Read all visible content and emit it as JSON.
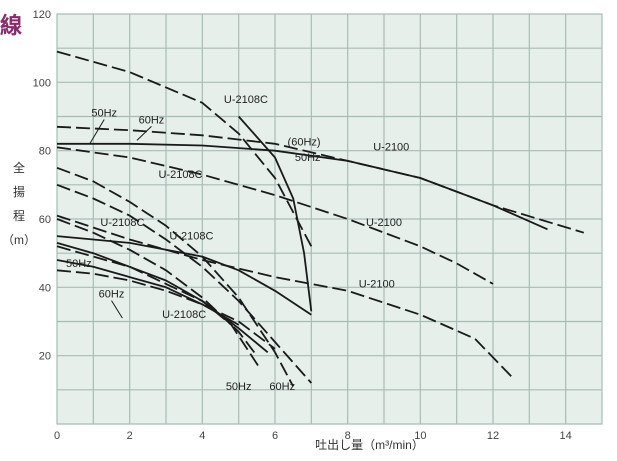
{
  "chart_data": {
    "type": "line",
    "title": "線",
    "xlabel": "吐出し量（m³/min）",
    "ylabel": [
      "全",
      "揚",
      "程",
      "（m）"
    ],
    "xlim": [
      0,
      15
    ],
    "ylim": [
      0,
      120
    ],
    "x_ticks": [
      {
        "v": 0,
        "label": "0"
      },
      {
        "v": 2,
        "label": "2"
      },
      {
        "v": 4,
        "label": "4"
      },
      {
        "v": 6,
        "label": "6"
      },
      {
        "v": 8,
        "label": "8"
      },
      {
        "v": 10,
        "label": "10"
      },
      {
        "v": 12,
        "label": "12"
      },
      {
        "v": 14,
        "label": "14"
      }
    ],
    "y_ticks": [
      {
        "v": 20,
        "label": "20"
      },
      {
        "v": 40,
        "label": "40"
      },
      {
        "v": 60,
        "label": "60"
      },
      {
        "v": 80,
        "label": "80"
      },
      {
        "v": 100,
        "label": "100"
      },
      {
        "v": 120,
        "label": "120"
      }
    ],
    "grid": true,
    "series": [
      {
        "name": "U-2108C",
        "dash": "dashed",
        "x": [
          0,
          2,
          4,
          5,
          6,
          7
        ],
        "y": [
          109,
          103,
          94,
          85,
          72,
          52
        ]
      },
      {
        "name": "50Hz",
        "dash": "solid",
        "x": [
          5,
          6,
          6.5,
          6.8,
          7
        ],
        "y": [
          90,
          78,
          66,
          50,
          33
        ]
      },
      {
        "name": "U-2100 (60Hz)",
        "dash": "dashed",
        "x": [
          0,
          2,
          4,
          6,
          8,
          10,
          12,
          14.5
        ],
        "y": [
          87,
          86,
          84.5,
          82,
          77,
          72,
          64,
          56
        ]
      },
      {
        "name": "50Hz",
        "dash": "solid",
        "x": [
          0,
          2,
          4,
          6,
          8,
          10,
          12,
          13.5
        ],
        "y": [
          82,
          82,
          81.5,
          80,
          77,
          72,
          64,
          57
        ]
      },
      {
        "name": "U-2100",
        "dash": "dashed",
        "x": [
          0,
          2,
          4,
          6,
          8,
          10,
          11,
          12
        ],
        "y": [
          81,
          78,
          73,
          67,
          60,
          52,
          47,
          41
        ]
      },
      {
        "name": "U-2108C",
        "dash": "dashed",
        "x": [
          0,
          1,
          2,
          3,
          4,
          5,
          6,
          6.5
        ],
        "y": [
          75,
          71,
          65,
          58,
          49,
          37,
          21,
          11
        ]
      },
      {
        "name": "U-2108C",
        "dash": "dashed",
        "x": [
          0,
          1,
          2,
          3,
          4,
          5,
          6,
          7
        ],
        "y": [
          70,
          66,
          61,
          54,
          46,
          36,
          24,
          12
        ]
      },
      {
        "name": "U-2100",
        "dash": "dashed",
        "x": [
          0,
          2,
          4,
          6,
          8,
          10,
          11.5,
          12.5
        ],
        "y": [
          61,
          54,
          48,
          43,
          39,
          32,
          25,
          14
        ]
      },
      {
        "name": "50Hz",
        "dash": "solid",
        "x": [
          0,
          2,
          4,
          5,
          6,
          7
        ],
        "y": [
          55,
          53,
          49,
          45,
          39,
          32
        ]
      },
      {
        "name": "U-2108C",
        "dash": "dashed",
        "x": [
          0,
          1,
          2,
          3,
          4,
          5,
          5.5
        ],
        "y": [
          60,
          56,
          51,
          45,
          37,
          27,
          20
        ]
      },
      {
        "name": "60Hz",
        "dash": "solid",
        "x": [
          0,
          1,
          2,
          3,
          4,
          5,
          5.8
        ],
        "y": [
          53,
          50,
          46,
          42,
          36,
          28,
          21
        ]
      },
      {
        "name": "U-2108C",
        "dash": "dashed",
        "x": [
          0,
          1,
          2,
          3,
          4,
          4.8,
          5.6
        ],
        "y": [
          52,
          49,
          46,
          41,
          36,
          29,
          16
        ]
      },
      {
        "name": "50Hz",
        "dash": "solid",
        "x": [
          0,
          1,
          2,
          3,
          4,
          5
        ],
        "y": [
          48,
          46,
          43,
          40,
          35,
          29
        ]
      },
      {
        "name": "U-2108C",
        "dash": "dashed",
        "x": [
          0,
          1,
          2,
          3,
          4,
          5,
          6
        ],
        "y": [
          45,
          44,
          42,
          39,
          35,
          30,
          22
        ]
      }
    ],
    "annotations": [
      {
        "text": "50Hz",
        "x": 1.3,
        "y": 90,
        "ax": 0.9,
        "ay": 82
      },
      {
        "text": "60Hz",
        "x": 2.6,
        "y": 88,
        "ax": 2.2,
        "ay": 83
      },
      {
        "text": "U-2108C",
        "x": 5.2,
        "y": 94
      },
      {
        "text": "(60Hz)",
        "x": 6.8,
        "y": 81.5
      },
      {
        "text": "U-2100",
        "x": 9.2,
        "y": 80
      },
      {
        "text": "50Hz",
        "x": 6.9,
        "y": 77
      },
      {
        "text": "U-2108C",
        "x": 3.4,
        "y": 72
      },
      {
        "text": "U-2100",
        "x": 9.0,
        "y": 58
      },
      {
        "text": "U-2108C",
        "x": 1.8,
        "y": 58
      },
      {
        "text": "U-2108C",
        "x": 3.7,
        "y": 54
      },
      {
        "text": "50Hz",
        "x": 0.6,
        "y": 46
      },
      {
        "text": "60Hz",
        "x": 1.5,
        "y": 37,
        "ax": 1.8,
        "ay": 31
      },
      {
        "text": "U-2100",
        "x": 8.8,
        "y": 40
      },
      {
        "text": "U-2108C",
        "x": 3.5,
        "y": 31
      },
      {
        "text": "50Hz",
        "x": 5.0,
        "y": 10
      },
      {
        "text": "60Hz",
        "x": 6.2,
        "y": 10
      }
    ]
  }
}
